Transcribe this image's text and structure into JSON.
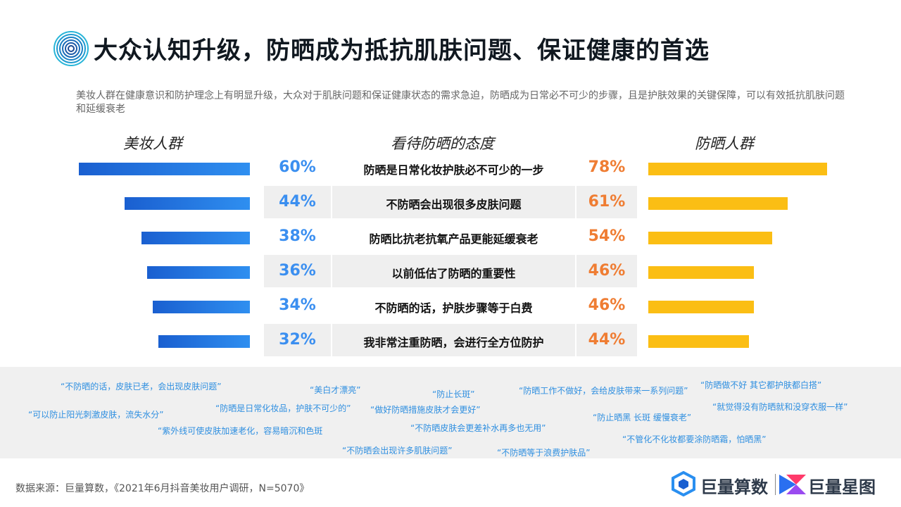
{
  "header": {
    "title": "大众认知升级，防晒成为抵抗肌肤问题、保证健康的首选",
    "subtitle": "美妆人群在健康意识和防护理念上有明显升级，大众对于肌肤问题和保证健康状态的需求急迫，防晒成为日常必不可少的步骤，且是护肤效果的关键保障，可以有效抵抗肌肤问题和延缓衰老"
  },
  "columns": {
    "left": "美妆人群",
    "middle": "看待防晒的态度",
    "right": "防晒人群"
  },
  "chart_data": {
    "type": "bar",
    "categories": [
      "防晒是日常化妆护肤必不可少的一步",
      "不防晒会出现很多皮肤问题",
      "防晒比抗老抗氧产品更能延缓衰老",
      "以前低估了防晒的重要性",
      "不防晒的话，护肤步骤等于白费",
      "我非常注重防晒，会进行全方位防护"
    ],
    "series": [
      {
        "name": "美妆人群",
        "values": [
          60,
          44,
          38,
          36,
          34,
          32
        ],
        "color": "#2f8ff0"
      },
      {
        "name": "防晒人群",
        "values": [
          78,
          61,
          54,
          46,
          46,
          44
        ],
        "color": "#fbbe14"
      }
    ],
    "left_labels": [
      "60%",
      "44%",
      "38%",
      "36%",
      "34%",
      "32%"
    ],
    "right_labels": [
      "78%",
      "61%",
      "54%",
      "46%",
      "46%",
      "44%"
    ],
    "title": "看待防晒的态度"
  },
  "quotes": [
    "“不防晒的话，皮肤已老，会出现皮肤问题”",
    "“美白才漂亮”",
    "“防止长斑”",
    "“防晒工作不做好，会给皮肤带来一系列问题”",
    "“防晒做不好 其它都护肤都白搭”",
    "“可以防止阳光刺激皮肤，流失水分”",
    "“防晒是日常化妆品，护肤不可少的”",
    "“做好防晒措施皮肤才会更好”",
    "“防止晒黑 长斑 缓慢衰老”",
    "“就觉得没有防晒就和没穿衣服一样”",
    "“紫外线可使皮肤加速老化，容易暗沉和色斑",
    "“不防晒皮肤会更差补水再多也无用”",
    "“不管化不化妆都要涂防晒霜，怕晒黑”",
    "“不防晒会出现许多肌肤问题”",
    "“不防晒等于浪费护肤品”"
  ],
  "footer": {
    "source": "数据来源：巨量算数，《2021年6月抖音美妆用户调研，N=5070》",
    "logo1": "巨量算数",
    "logo2": "巨量星图"
  }
}
